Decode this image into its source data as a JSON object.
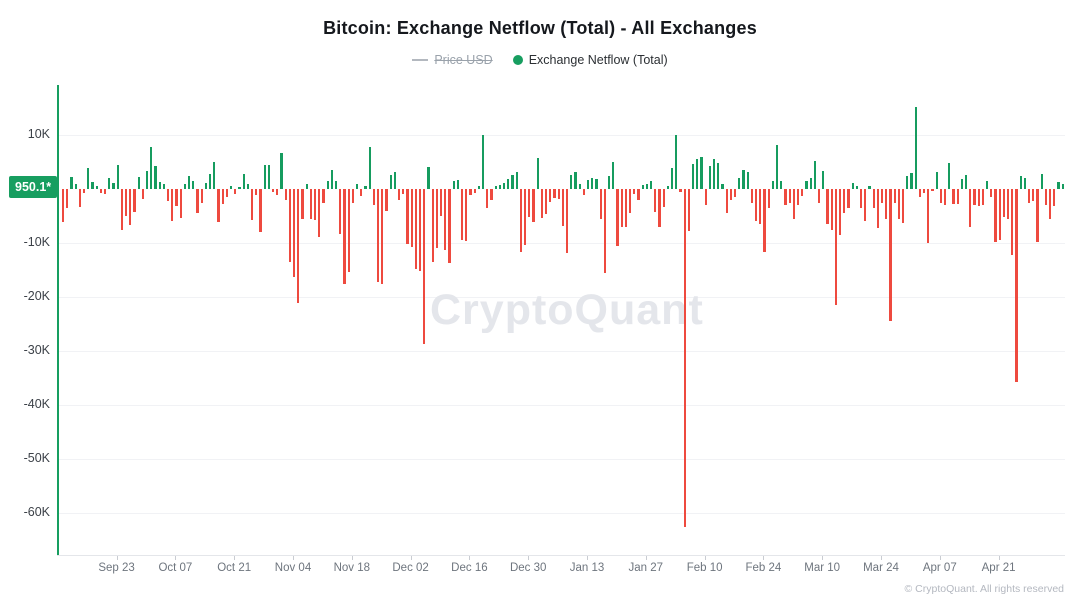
{
  "title": "Bitcoin: Exchange Netflow (Total) - All Exchanges",
  "legend": {
    "price_usd_label": "Price USD",
    "netflow_label": "Exchange Netflow (Total)"
  },
  "badge": {
    "value": "950.1*",
    "color": "#179e60"
  },
  "watermark": "CryptoQuant",
  "footer": "© CryptoQuant. All rights reserved",
  "colors": {
    "positive": "#169c5f",
    "negative": "#ee4a3f",
    "axis": "#179e60",
    "grid": "#f1f2f5"
  },
  "chart_data": {
    "type": "bar",
    "title": "Bitcoin: Exchange Netflow (Total) - All Exchanges",
    "ylabel": "Exchange Netflow (Total)",
    "values_unit": "thousand BTC",
    "ylim": [
      -65,
      17
    ],
    "grid": true,
    "legend_position": "top-center",
    "latest_value_label": "950.1*",
    "y_ticks": [
      {
        "label": "10K",
        "value": 10
      },
      {
        "label": "-10K",
        "value": -10
      },
      {
        "label": "-20K",
        "value": -20
      },
      {
        "label": "-30K",
        "value": -30
      },
      {
        "label": "-40K",
        "value": -40
      },
      {
        "label": "-50K",
        "value": -50
      },
      {
        "label": "-60K",
        "value": -60
      }
    ],
    "x_ticks": [
      {
        "label": "Sep 23",
        "index": 13
      },
      {
        "label": "Oct 07",
        "index": 27
      },
      {
        "label": "Oct 21",
        "index": 41
      },
      {
        "label": "Nov 04",
        "index": 55
      },
      {
        "label": "Nov 18",
        "index": 69
      },
      {
        "label": "Dec 02",
        "index": 83
      },
      {
        "label": "Dec 16",
        "index": 97
      },
      {
        "label": "Dec 30",
        "index": 111
      },
      {
        "label": "Jan 13",
        "index": 125
      },
      {
        "label": "Jan 27",
        "index": 139
      },
      {
        "label": "Feb 10",
        "index": 153
      },
      {
        "label": "Feb 24",
        "index": 167
      },
      {
        "label": "Mar 10",
        "index": 181
      },
      {
        "label": "Mar 24",
        "index": 195
      },
      {
        "label": "Apr 07",
        "index": 209
      },
      {
        "label": "Apr 21",
        "index": 223
      }
    ],
    "values": [
      -6.2,
      -3.6,
      2.3,
      0.9,
      -3.4,
      -0.8,
      3.9,
      1.3,
      0.6,
      -0.8,
      -1.0,
      2.1,
      1.1,
      4.4,
      -7.6,
      -5.0,
      -6.6,
      -4.2,
      2.2,
      -1.8,
      3.4,
      7.8,
      4.3,
      1.3,
      0.9,
      -2.2,
      -5.9,
      -3.2,
      -5.4,
      0.9,
      2.4,
      1.4,
      -4.4,
      -2.6,
      1.1,
      2.7,
      5.0,
      -6.1,
      -2.7,
      -1.5,
      0.5,
      -1.0,
      0.4,
      2.8,
      0.9,
      -5.7,
      -1.2,
      -7.9,
      4.4,
      4.4,
      -0.6,
      -1.2,
      6.6,
      -2.0,
      -13.5,
      -16.3,
      -21.1,
      -5.5,
      0.9,
      -5.5,
      -5.8,
      -8.8,
      -2.5,
      1.5,
      3.6,
      1.5,
      -8.4,
      -17.6,
      -15.3,
      -2.5,
      1.0,
      -1.3,
      0.6,
      7.8,
      -3.0,
      -17.3,
      -17.6,
      -4.0,
      2.6,
      3.1,
      -2.0,
      -1.0,
      -10.1,
      -10.8,
      -14.8,
      -15.2,
      -28.7,
      4.0,
      -13.5,
      -11.0,
      -5.0,
      -11.3,
      -13.7,
      1.5,
      1.6,
      -9.5,
      -9.7,
      -1.2,
      -0.8,
      0.5,
      10.0,
      -3.6,
      -2.0,
      0.6,
      0.8,
      1.1,
      1.9,
      2.6,
      3.1,
      -11.6,
      -10.4,
      -5.1,
      -6.2,
      5.7,
      -5.4,
      -4.6,
      -2.4,
      -1.6,
      -1.9,
      -6.9,
      -11.9,
      2.6,
      3.1,
      1.0,
      -1.2,
      1.6,
      2.1,
      1.9,
      -5.6,
      -15.5,
      2.4,
      5.0,
      -10.6,
      -7.1,
      -7.0,
      -4.4,
      -1.0,
      -2.1,
      0.7,
      0.9,
      1.5,
      -4.2,
      -7.0,
      -3.4,
      0.6,
      3.8,
      10.0,
      -0.5,
      -62.6,
      -7.8,
      4.6,
      5.5,
      6.0,
      -3.0,
      4.2,
      5.5,
      4.8,
      1.0,
      -4.5,
      -2.0,
      -1.5,
      2.0,
      3.5,
      3.2,
      -2.5,
      -6.0,
      -6.5,
      -11.6,
      -3.6,
      1.5,
      8.1,
      1.5,
      -3.0,
      -2.5,
      -5.5,
      -3.0,
      -1.3,
      1.5,
      2.0,
      5.1,
      -2.5,
      3.3,
      -6.5,
      -7.5,
      -21.5,
      -8.5,
      -4.5,
      -3.5,
      1.2,
      0.5,
      -3.5,
      -6.0,
      0.5,
      -3.6,
      -7.3,
      -2.5,
      -5.5,
      -24.5,
      -2.5,
      -5.5,
      -6.3,
      2.5,
      3.0,
      15.2,
      -1.5,
      -0.8,
      -10.0,
      -0.3,
      3.2,
      -2.5,
      -3.0,
      4.8,
      -2.8,
      -2.7,
      1.8,
      2.6,
      -7.0,
      -3.0,
      -3.2,
      -3.0,
      1.5,
      -1.5,
      -9.8,
      -9.5,
      -5.2,
      -5.5,
      -12.2,
      -35.7,
      2.5,
      2.0,
      -2.5,
      -2.2,
      -9.8,
      2.8,
      -3.0,
      -5.5,
      -3.2,
      1.3,
      0.95
    ]
  }
}
